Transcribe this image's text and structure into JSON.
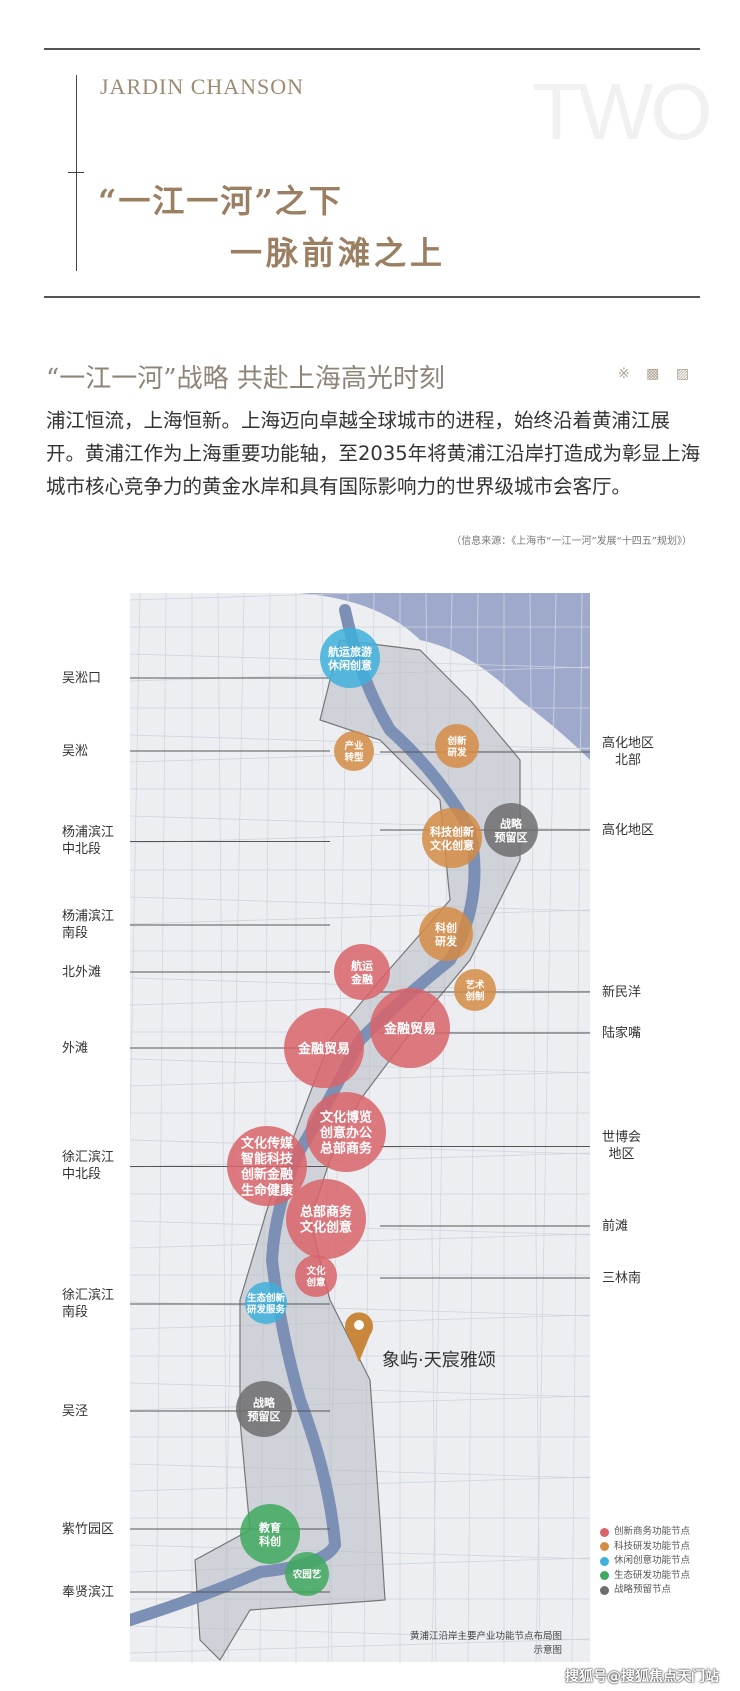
{
  "header": {
    "brand": "JARDIN CHANSON",
    "watermark_text": "TWO",
    "title_line1": "“一江一河”之下",
    "title_line2": "一脉前滩之上"
  },
  "section": {
    "subtitle": "“一江一河”战略  共赴上海高光时刻",
    "ornament": "※ ▩ ▨",
    "body": "浦江恒流，上海恒新。上海迈向卓越全球城市的进程，始终沿着黄浦江展开。黄浦江作为上海重要功能轴，至2035年将黄浦江沿岸打造成为彰显上海城市核心竞争力的黄金水岸和具有国际影响力的世界级城市会客厅。",
    "source": "（信息来源：《上海市“一江一河”发展“十四五”规划》）"
  },
  "map": {
    "colors": {
      "business": "#d9646a",
      "tech": "#d58c45",
      "leisure": "#3fb0dc",
      "eco": "#3fa95e",
      "reserve": "#6e6e70",
      "river": "#7c8fb4",
      "sea": "#9ea9cc"
    },
    "left_labels": [
      "吴淞口",
      "吴淞",
      "杨浦滨江\n中北段",
      "杨浦滨江\n南段",
      "北外滩",
      "外滩",
      "徐汇滨江\n中北段",
      "徐汇滨江\n南段",
      "吴泾",
      "紫竹园区",
      "奉贤滨江"
    ],
    "right_labels": [
      "高化地区\n北部",
      "高化地区",
      "新民洋",
      "陆家嘴",
      "世博会\n地区",
      "前滩",
      "三林南"
    ],
    "nodes": [
      {
        "type": "leisure",
        "text": "航运旅游\n休闲创意"
      },
      {
        "type": "tech",
        "text": "产业\n转型"
      },
      {
        "type": "tech",
        "text": "创新\n研发"
      },
      {
        "type": "reserve",
        "text": "战略\n预留区"
      },
      {
        "type": "tech",
        "text": "科技创新\n文化创意"
      },
      {
        "type": "tech",
        "text": "科创\n研发"
      },
      {
        "type": "business",
        "text": "航运\n金融"
      },
      {
        "type": "tech",
        "text": "艺术\n创制"
      },
      {
        "type": "business",
        "text": "金融贸易"
      },
      {
        "type": "business",
        "text": "金融贸易"
      },
      {
        "type": "business",
        "text": "文化博览\n创意办公\n总部商务"
      },
      {
        "type": "business",
        "text": "文化传媒\n智能科技\n创新金融\n生命健康"
      },
      {
        "type": "business",
        "text": "总部商务\n文化创意"
      },
      {
        "type": "business",
        "text": "文化\n创意"
      },
      {
        "type": "leisure",
        "text": "生态创新\n研发服务"
      },
      {
        "type": "reserve",
        "text": "战略\n预留区"
      },
      {
        "type": "eco",
        "text": "教育\n科创"
      },
      {
        "type": "eco",
        "text": "农园艺"
      }
    ],
    "pin_label": "象屿·天宸雅颂",
    "legend": [
      {
        "type": "business",
        "label": "创新商务功能节点"
      },
      {
        "type": "tech",
        "label": "科技研发功能节点"
      },
      {
        "type": "leisure",
        "label": "休闲创意功能节点"
      },
      {
        "type": "eco",
        "label": "生态研发功能节点"
      },
      {
        "type": "reserve",
        "label": "战略预留节点"
      }
    ],
    "caption_line1": "黄浦江沿岸主要产业功能节点布局图",
    "caption_line2": "示意图"
  },
  "footer": {
    "watermark": "搜狐号@搜狐焦点天门站"
  }
}
